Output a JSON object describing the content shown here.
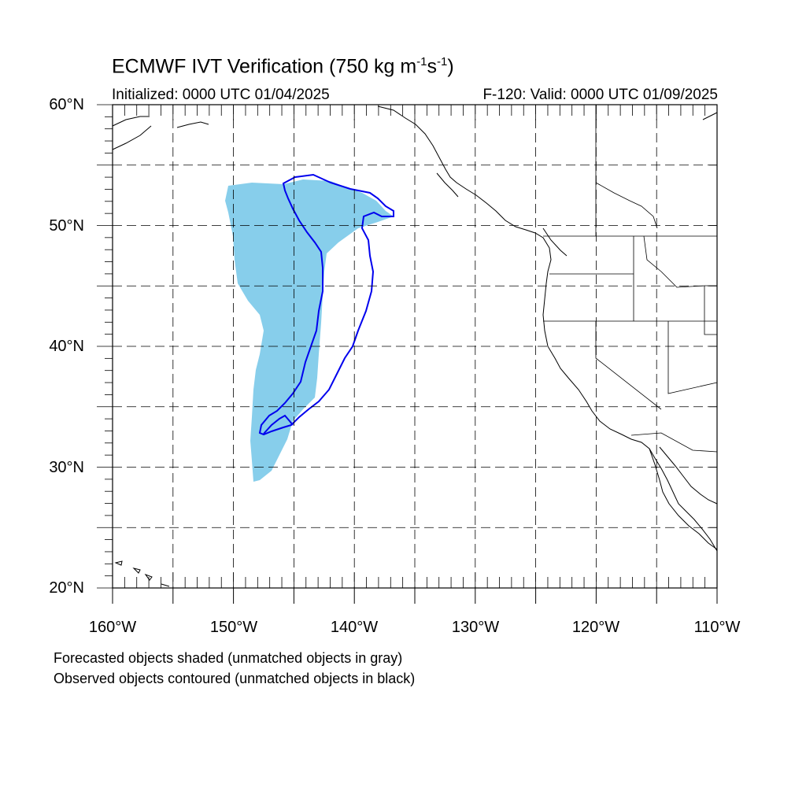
{
  "header": {
    "title_main": "ECMWF IVT Verification (750 kg m",
    "title_sup1": "-1",
    "title_mid": "s",
    "title_sup2": "-1",
    "title_end": ")",
    "initialized": "Initialized: 0000 UTC 01/04/2025",
    "valid": "F-120: Valid: 0000 UTC 01/09/2025"
  },
  "axes": {
    "lat_labels": [
      "60°N",
      "50°N",
      "40°N",
      "30°N",
      "20°N"
    ],
    "lon_labels": [
      "160°W",
      "150°W",
      "140°W",
      "130°W",
      "120°W",
      "110°W"
    ],
    "lat_range": [
      20,
      60
    ],
    "lon_range": [
      -160,
      -110
    ],
    "grid": "dashed"
  },
  "legend": {
    "line1": "Forecasted objects shaded (unmatched objects in gray)",
    "line2": "Observed objects contoured (unmatched objects in black)"
  },
  "colors": {
    "forecast_fill": "#87ceeb",
    "observed_contour": "#0000ee",
    "coastline": "#000000"
  }
}
